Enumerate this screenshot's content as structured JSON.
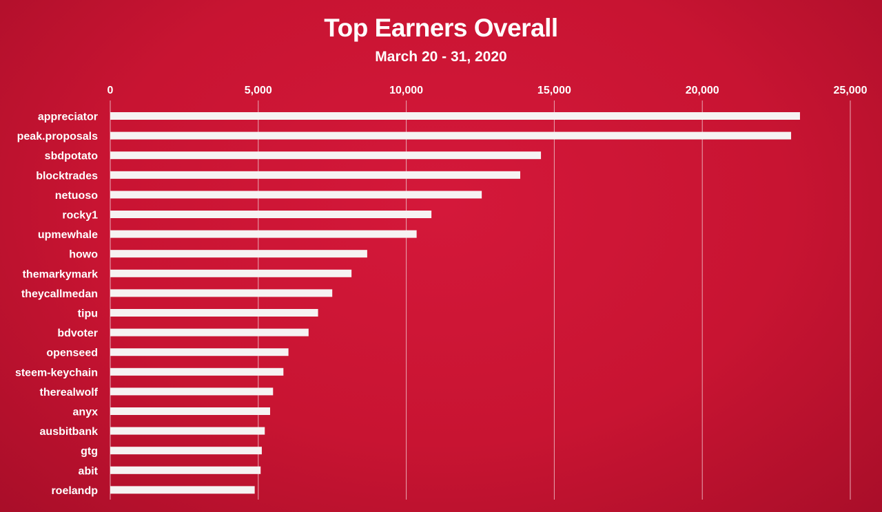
{
  "chart_data": {
    "type": "bar",
    "orientation": "horizontal",
    "title": "Top Earners Overall",
    "subtitle": "March 20 - 31, 2020",
    "xlabel": "",
    "ylabel": "",
    "xlim": [
      0,
      25000
    ],
    "ticks": [
      0,
      5000,
      10000,
      15000,
      20000,
      25000
    ],
    "tick_labels": [
      "0",
      "5,000",
      "10,000",
      "15,000",
      "20,000",
      "25,000"
    ],
    "x_axis_position": "top",
    "grid": true,
    "categories": [
      "appreciator",
      "peak.proposals",
      "sbdpotato",
      "blocktrades",
      "netuoso",
      "rocky1",
      "upmewhale",
      "howo",
      "themarkymark",
      "theycallmedan",
      "tipu",
      "bdvoter",
      "openseed",
      "steem-keychain",
      "therealwolf",
      "anyx",
      "ausbitbank",
      "gtg",
      "abit",
      "roelandp"
    ],
    "values": [
      23300,
      23000,
      14550,
      13850,
      12550,
      10850,
      10350,
      8680,
      8150,
      7500,
      7020,
      6700,
      6020,
      5850,
      5500,
      5400,
      5220,
      5120,
      5080,
      4880
    ],
    "colors": {
      "background": "#c81432",
      "bar": "#f6f3f3",
      "gridline": "#e9a9b4",
      "text": "#ffffff"
    }
  }
}
